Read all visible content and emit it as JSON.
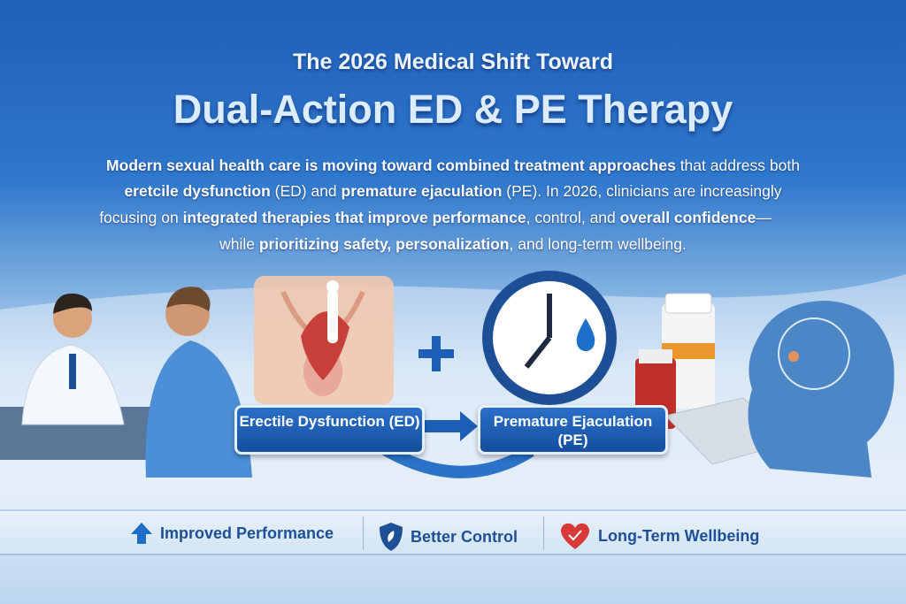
{
  "title": {
    "line1": "The 2026 Medical Shift Toward",
    "line2": "Dual-Action ED & PE Therapy"
  },
  "intro": [
    [
      {
        "t": "Modern sexual health care is moving toward combined treatment approaches",
        "b": true
      },
      {
        "t": " that address both",
        "b": false
      }
    ],
    [
      {
        "t": "eretcile dysfunction",
        "b": true
      },
      {
        "t": " (ED) and ",
        "b": false
      },
      {
        "t": "premature ejaculation",
        "b": true
      },
      {
        "t": " (PE). In 2026, clinicians are increasingly",
        "b": false
      }
    ],
    [
      {
        "t": "focusing on ",
        "b": false
      },
      {
        "t": "integrated therapies that improve performance",
        "b": true
      },
      {
        "t": ", control, and ",
        "b": false
      },
      {
        "t": "overall confidence",
        "b": true
      },
      {
        "t": "—",
        "b": false
      }
    ],
    [
      {
        "t": "while ",
        "b": false
      },
      {
        "t": "prioritizing safety, personalization",
        "b": true
      },
      {
        "t": ", and long-term wellbeing.",
        "b": false
      }
    ]
  ],
  "labels": {
    "ed": "Erectile Dysfunction (ED)",
    "pe": "Premature Ejaculation (PE)",
    "plus": "+"
  },
  "benefits": [
    {
      "icon": "arrow-up-icon",
      "label": "Improved Performance"
    },
    {
      "icon": "shield-icon",
      "label": "Better Control"
    },
    {
      "icon": "heart-check-icon",
      "label": "Long-Term Wellbeing"
    }
  ],
  "colors": {
    "primary": "#1d4f96",
    "accent_red": "#d83a3a"
  }
}
